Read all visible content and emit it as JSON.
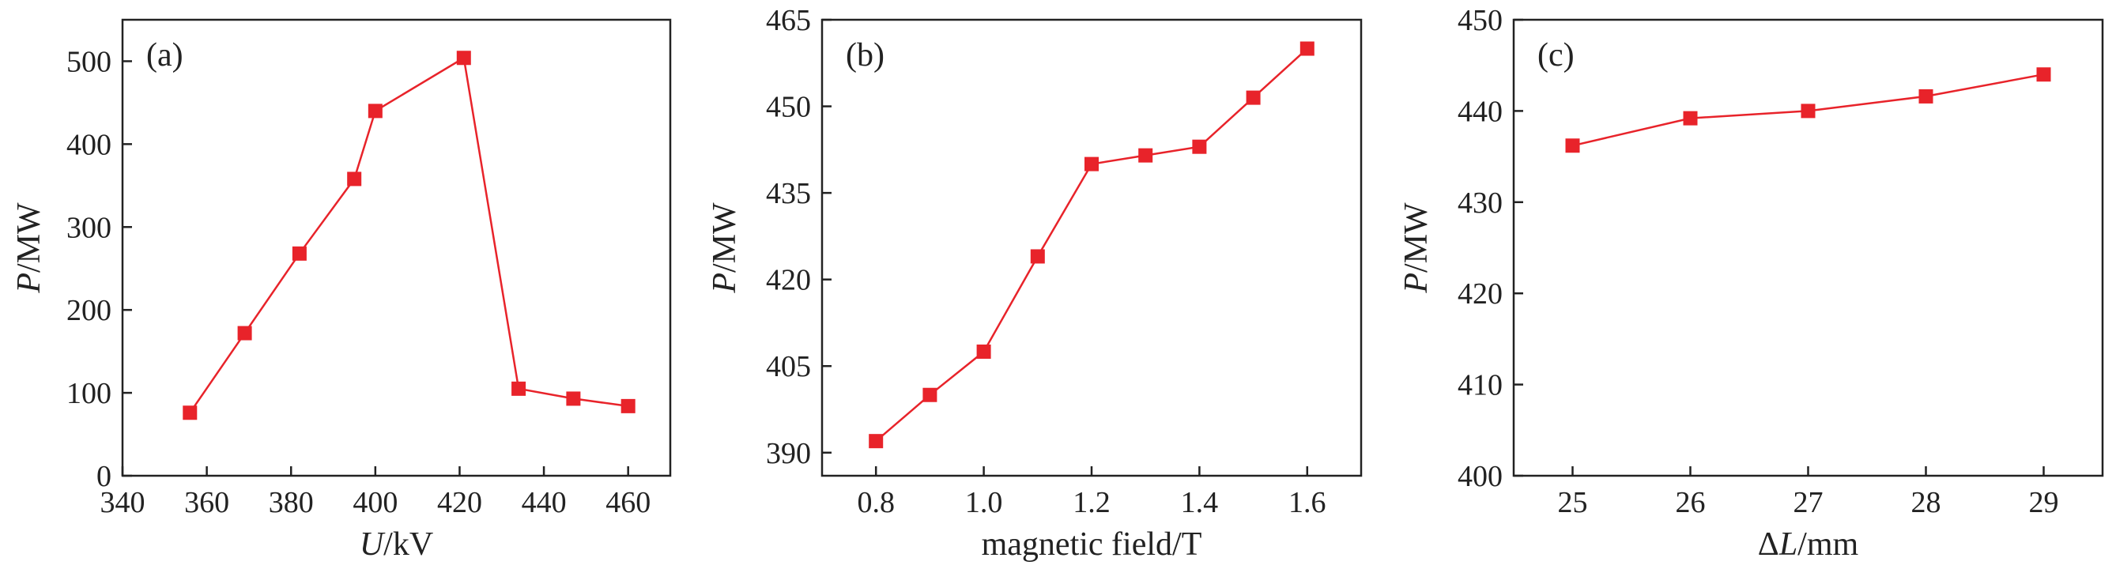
{
  "figure": {
    "accent_color": "#e8232a",
    "axis_color": "#222222"
  },
  "chart_data": [
    {
      "type": "line",
      "panel_label": "(a)",
      "xlabel": {
        "italic": "U",
        "rest": "/kV"
      },
      "ylabel": {
        "italic": "P",
        "rest": "/MW"
      },
      "xlim": [
        340,
        470
      ],
      "ylim": [
        0,
        550
      ],
      "xticks": [
        340,
        360,
        380,
        400,
        420,
        440,
        460
      ],
      "xtick_labels": [
        "340",
        "360",
        "380",
        "400",
        "420",
        "440",
        "460"
      ],
      "yticks": [
        0,
        100,
        200,
        300,
        400,
        500
      ],
      "ytick_labels": [
        "0",
        "100",
        "200",
        "300",
        "400",
        "500"
      ],
      "series": [
        {
          "marker": "square",
          "color": "#e8232a",
          "x": [
            356,
            369,
            382,
            395,
            400,
            421,
            434,
            447,
            460
          ],
          "y": [
            76,
            172,
            268,
            358,
            440,
            504,
            105,
            93,
            84
          ]
        }
      ]
    },
    {
      "type": "line",
      "panel_label": "(b)",
      "xlabel": {
        "italic": "",
        "rest": "magnetic field/T"
      },
      "ylabel": {
        "italic": "P",
        "rest": "/MW"
      },
      "xlim": [
        0.7,
        1.7
      ],
      "ylim": [
        386,
        465
      ],
      "xticks": [
        0.8,
        1.0,
        1.2,
        1.4,
        1.6
      ],
      "xtick_labels": [
        "0.8",
        "1.0",
        "1.2",
        "1.4",
        "1.6"
      ],
      "yticks": [
        390,
        405,
        420,
        435,
        450,
        465
      ],
      "ytick_labels": [
        "390",
        "405",
        "420",
        "435",
        "450",
        "465"
      ],
      "series": [
        {
          "marker": "square",
          "color": "#e8232a",
          "x": [
            0.8,
            0.9,
            1.0,
            1.1,
            1.2,
            1.3,
            1.4,
            1.5,
            1.6
          ],
          "y": [
            392,
            400,
            407.5,
            424,
            440,
            441.5,
            443,
            451.5,
            460
          ]
        }
      ]
    },
    {
      "type": "line",
      "panel_label": "(c)",
      "xlabel": {
        "italic": "L",
        "rest": "/mm",
        "prefix": "Δ"
      },
      "ylabel": {
        "italic": "P",
        "rest": "/MW"
      },
      "xlim": [
        24.5,
        29.5
      ],
      "ylim": [
        400,
        450
      ],
      "xticks": [
        25,
        26,
        27,
        28,
        29
      ],
      "xtick_labels": [
        "25",
        "26",
        "27",
        "28",
        "29"
      ],
      "yticks": [
        400,
        410,
        420,
        430,
        440,
        450
      ],
      "ytick_labels": [
        "400",
        "410",
        "420",
        "430",
        "440",
        "450"
      ],
      "series": [
        {
          "marker": "square",
          "color": "#e8232a",
          "x": [
            25,
            26,
            27,
            28,
            29
          ],
          "y": [
            436.2,
            439.2,
            440,
            441.6,
            444
          ]
        }
      ]
    }
  ]
}
